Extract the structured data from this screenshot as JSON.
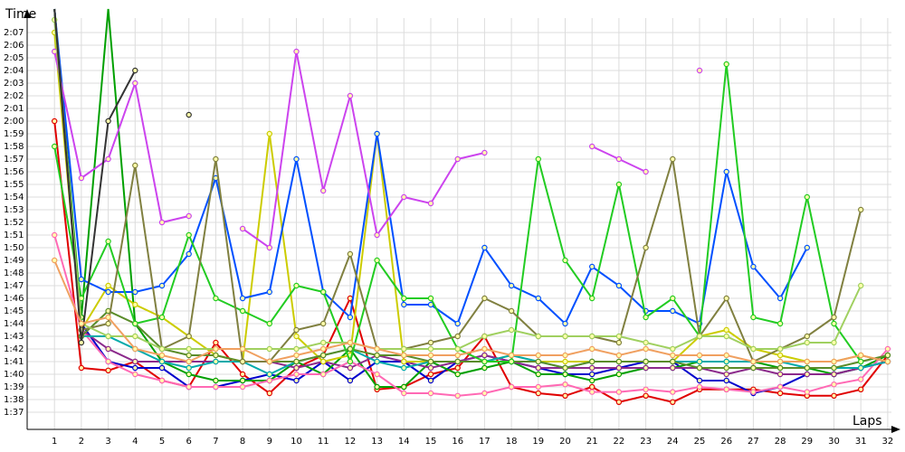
{
  "chart_data": {
    "type": "line",
    "xlabel": "Laps",
    "ylabel": "Time",
    "x": [
      1,
      2,
      3,
      4,
      5,
      6,
      7,
      8,
      9,
      10,
      11,
      12,
      13,
      14,
      15,
      16,
      17,
      18,
      19,
      20,
      21,
      22,
      23,
      24,
      25,
      26,
      27,
      28,
      29,
      30,
      31,
      32
    ],
    "xlim": [
      0,
      32
    ],
    "ylim_seconds": [
      94,
      142
    ],
    "y_tick_labels": [
      "1:37",
      "1:38",
      "1:39",
      "1:40",
      "1:41",
      "1:42",
      "1:43",
      "1:44",
      "1:45",
      "1:46",
      "1:47",
      "1:48",
      "1:49",
      "1:50",
      "1:51",
      "1:52",
      "1:53",
      "1:54",
      "1:55",
      "1:56",
      "1:57",
      "1:58",
      "1:59",
      "2:00",
      "2:01",
      "2:02",
      "2:03",
      "2:04",
      "2:05",
      "2:06",
      "2:07"
    ],
    "grid": true,
    "series": [
      {
        "color": "#e00000",
        "values": [
          120,
          100.5,
          100.3,
          101,
          99.5,
          99,
          102.5,
          100,
          98.5,
          100.5,
          101.5,
          106,
          98.8,
          99,
          100,
          100.5,
          103,
          99,
          98.5,
          98.3,
          99,
          97.8,
          98.3,
          97.8,
          98.8,
          98.8,
          98.8,
          98.5,
          98.3,
          98.3,
          98.8,
          101.5
        ]
      },
      {
        "color": "#0000cc",
        "values": [
          155,
          104,
          101,
          100.5,
          100.5,
          99,
          99,
          99.5,
          100,
          99.5,
          101,
          99.5,
          101,
          101,
          99.5,
          101,
          101.5,
          101,
          100.5,
          100,
          100,
          100.5,
          101,
          101,
          99.5,
          99.5,
          98.5,
          99,
          100,
          100,
          100.5,
          101
        ]
      },
      {
        "color": "#00a000",
        "values": [
          148,
          104.5,
          150,
          104,
          101,
          100,
          99.5,
          99.5,
          99.5,
          101,
          100,
          102,
          99,
          99,
          101,
          100,
          100.5,
          101,
          100,
          100,
          99.5,
          100,
          100.5,
          100.5,
          101,
          101,
          101,
          100.5,
          100.5,
          100,
          100.5,
          101.5
        ]
      },
      {
        "color": "#8c2a8c",
        "values": [
          150,
          103.5,
          102,
          101,
          101,
          101,
          101,
          101,
          101,
          100.5,
          101,
          100.5,
          101.5,
          101,
          100.5,
          101,
          101.5,
          101,
          100.5,
          100.5,
          100.5,
          100.5,
          100.5,
          100.5,
          100.5,
          100,
          100.5,
          100,
          100,
          100,
          100.5,
          101
        ]
      },
      {
        "color": "#ff69b4",
        "values": [
          111,
          103.5,
          101,
          100,
          99.5,
          99,
          99,
          99,
          99.5,
          100,
          100,
          101,
          100,
          98.5,
          98.5,
          98.3,
          98.5,
          99,
          99,
          99.2,
          98.6,
          98.6,
          98.8,
          98.6,
          99,
          98.8,
          98.6,
          99,
          98.6,
          99.2,
          99.6,
          102
        ]
      },
      {
        "color": "#cccc00",
        "values": [
          127,
          103.5,
          107,
          105.5,
          104.5,
          103,
          101.5,
          101,
          119,
          103,
          101,
          101.5,
          119,
          101,
          101,
          101,
          101,
          101.5,
          101,
          101,
          101,
          101,
          101,
          101,
          103,
          103.5,
          102,
          101.5,
          101,
          101,
          101.5,
          101
        ]
      },
      {
        "color": "#00aaaa",
        "values": [
          133,
          103,
          103,
          102,
          101,
          100.5,
          101,
          101,
          100,
          101,
          101.5,
          102,
          101,
          100.5,
          101,
          101,
          101,
          101.5,
          101,
          100.5,
          101,
          101,
          101,
          101,
          101,
          101,
          101,
          101,
          100.5,
          100.5,
          100.5,
          101
        ]
      },
      {
        "color": "#5a8c2a",
        "values": [
          130,
          103,
          105,
          104,
          102,
          101.5,
          101.5,
          101,
          101,
          101,
          101.5,
          102,
          101.5,
          101.5,
          101,
          101,
          101,
          101,
          101,
          100.5,
          101,
          101,
          101,
          101,
          100.5,
          100.5,
          100.5,
          100.5,
          100.5,
          100.5,
          101,
          101.5
        ]
      },
      {
        "color": "#0050ff",
        "values": [
          145,
          107.5,
          106.5,
          106.5,
          107,
          109.5,
          115.5,
          106,
          106.5,
          117,
          106.5,
          104.5,
          119,
          105.5,
          105.5,
          104,
          110,
          107,
          106,
          104,
          108.5,
          107,
          105,
          105,
          104,
          116,
          108.5,
          106,
          110,
          null,
          null,
          null
        ]
      },
      {
        "color": "#cc44ee",
        "values": [
          125.5,
          115.5,
          117,
          123,
          112,
          112.5,
          null,
          111.5,
          110,
          125.5,
          114.5,
          122,
          111,
          114,
          113.5,
          117,
          117.5,
          null,
          null,
          null,
          118,
          117,
          116,
          null,
          124,
          null,
          null,
          null,
          null,
          null,
          null,
          null
        ]
      },
      {
        "color": "#22cc22",
        "values": [
          118,
          106,
          110.5,
          104,
          104.5,
          111,
          106,
          105,
          104,
          107,
          106.5,
          101,
          109,
          106,
          106,
          102,
          101,
          101,
          117,
          109,
          106,
          115,
          104.5,
          106,
          103,
          124.5,
          104.5,
          104,
          114,
          104,
          101,
          null
        ]
      },
      {
        "color": "#808040",
        "values": [
          137,
          103.5,
          104,
          116.5,
          102,
          103,
          117,
          101,
          101,
          103.5,
          104,
          109.5,
          102,
          102,
          102.5,
          103,
          106,
          105,
          103,
          103,
          103,
          102.5,
          110,
          117,
          103,
          106,
          101,
          102,
          103,
          104.5,
          113,
          null
        ]
      },
      {
        "color": "#a0d060",
        "values": [
          128,
          104,
          103,
          103,
          102,
          102,
          102,
          102,
          102,
          102,
          102.5,
          102.5,
          102,
          102,
          102,
          102,
          103,
          103.5,
          103,
          103,
          103,
          103,
          102.5,
          102,
          103,
          103,
          102,
          102,
          102.5,
          102.5,
          107,
          null
        ]
      },
      {
        "color": "#333333",
        "values": [
          140,
          102.5,
          120,
          124,
          null,
          120.5,
          null,
          null,
          null,
          null,
          null,
          null,
          null,
          null,
          null,
          null,
          null,
          null,
          null,
          null,
          null,
          null,
          null,
          null,
          null,
          null,
          null,
          null,
          null,
          null,
          null,
          null
        ]
      },
      {
        "color": "#f0a060",
        "values": [
          109,
          104,
          104.5,
          102,
          101.5,
          101,
          102,
          102,
          101,
          101.5,
          102,
          102.5,
          102,
          101.5,
          101.5,
          101.5,
          102,
          101.5,
          101.5,
          101.5,
          102,
          101.5,
          102,
          101.5,
          101.5,
          101.5,
          101,
          101,
          101,
          101,
          101.5,
          101
        ]
      }
    ]
  }
}
